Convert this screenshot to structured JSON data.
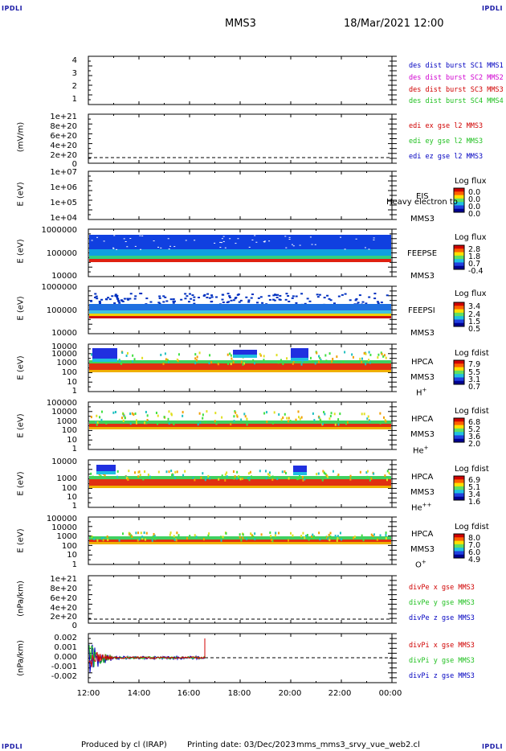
{
  "corner_label": "IPDLI",
  "header": {
    "spacecraft": "MMS3",
    "datetime": "18/Mar/2021 12:00"
  },
  "x_ticks": [
    "12:00",
    "14:00",
    "16:00",
    "18:00",
    "20:00",
    "22:00",
    "00:00"
  ],
  "footer": {
    "produced_by": "Produced by cl (IRAP)",
    "printing_date": "Printing date: 03/Dec/2023",
    "file": "mms_mms3_srvy_vue_web2.cl"
  },
  "colors": {
    "blue": "#0000c0",
    "magenta": "#d000d0",
    "red": "#d00000",
    "green": "#20c020"
  },
  "panels": [
    {
      "id": "des",
      "ylabel": "",
      "yticks": [
        "4",
        "3",
        "2",
        "1"
      ],
      "legend": [
        {
          "text": "des dist burst SC1 MMS1",
          "color": "#0000c0"
        },
        {
          "text": "des dist burst SC2 MMS2",
          "color": "#d000d0"
        },
        {
          "text": "des dist burst SC3 MMS3",
          "color": "#d00000"
        },
        {
          "text": "des dist burst SC4 MMS4",
          "color": "#20c020"
        }
      ]
    },
    {
      "id": "edi",
      "ylabel": "(mV/m)",
      "yticks": [
        "1e+21",
        "8e+20",
        "6e+20",
        "4e+20",
        "2e+20",
        "0"
      ],
      "legend": [
        {
          "text": "edi ex gse l2 MMS3",
          "color": "#d00000"
        },
        {
          "text": "edi ey gse l2 MMS3",
          "color": "#20c020"
        },
        {
          "text": "edi ez gse l2 MMS3",
          "color": "#0000c0"
        }
      ]
    },
    {
      "id": "eis",
      "ylabel": "E (eV)",
      "yticks": [
        "1e+07",
        "1e+06",
        "1e+05",
        "1e+04"
      ],
      "instrument": [
        "EIS",
        "MMS3"
      ],
      "overlay": "Heavy electron to",
      "cb_title": "Log flux",
      "cb_ticks": [
        "0.0",
        "0.0",
        "0.0",
        "0.0"
      ]
    },
    {
      "id": "feepse",
      "ylabel": "E (eV)",
      "yticks": [
        "1000000",
        "100000",
        "10000"
      ],
      "instrument": [
        "FEEPSE",
        "MMS3"
      ],
      "cb_title": "Log flux",
      "cb_ticks": [
        "2.8",
        "1.8",
        "0.7",
        "-0.4"
      ]
    },
    {
      "id": "feepsi",
      "ylabel": "E (eV)",
      "yticks": [
        "1000000",
        "100000",
        "10000"
      ],
      "instrument": [
        "FEEPSI",
        "MMS3"
      ],
      "cb_title": "Log flux",
      "cb_ticks": [
        "3.4",
        "2.4",
        "1.5",
        "0.5"
      ]
    },
    {
      "id": "hpca_h",
      "ylabel": "E (eV)",
      "yticks": [
        "10000",
        "1000",
        "100",
        "10",
        "1"
      ],
      "instrument": [
        "HPCA",
        "MMS3"
      ],
      "species": "H",
      "species_sup": "+",
      "cb_title": "Log fdist",
      "cb_ticks": [
        "7.9",
        "5.5",
        "3.1",
        "0.7"
      ]
    },
    {
      "id": "hpca_he",
      "ylabel": "E (eV)",
      "yticks": [
        "100000",
        "10000",
        "1000",
        "100",
        "10",
        "1"
      ],
      "instrument": [
        "HPCA",
        "MMS3"
      ],
      "species": "He",
      "species_sup": "+",
      "cb_title": "Log fdist",
      "cb_ticks": [
        "6.8",
        "5.2",
        "3.6",
        "2.0"
      ]
    },
    {
      "id": "hpca_hepp",
      "ylabel": "E (eV)",
      "yticks": [
        "10000",
        "1000",
        "100",
        "10",
        "1"
      ],
      "instrument": [
        "HPCA",
        "MMS3"
      ],
      "species": "He",
      "species_sup": "++",
      "cb_title": "Log fdist",
      "cb_ticks": [
        "6.9",
        "5.1",
        "3.4",
        "1.6"
      ]
    },
    {
      "id": "hpca_o",
      "ylabel": "E (eV)",
      "yticks": [
        "100000",
        "10000",
        "1000",
        "100",
        "10",
        "1"
      ],
      "instrument": [
        "HPCA",
        "MMS3"
      ],
      "species": "O",
      "species_sup": "+",
      "cb_title": "Log fdist",
      "cb_ticks": [
        "8.0",
        "7.0",
        "6.0",
        "4.9"
      ]
    },
    {
      "id": "divpe",
      "ylabel": "(nPa/km)",
      "yticks": [
        "1e+21",
        "8e+20",
        "6e+20",
        "4e+20",
        "2e+20",
        "0"
      ],
      "legend": [
        {
          "text": "divPe x gse MMS3",
          "color": "#d00000"
        },
        {
          "text": "divPe y gse MMS3",
          "color": "#20c020"
        },
        {
          "text": "divPe z gse MMS3",
          "color": "#0000c0"
        }
      ]
    },
    {
      "id": "divpi",
      "ylabel": "(nPa/km)",
      "yticks": [
        "0.002",
        "0.001",
        "0.000",
        "-0.001",
        "-0.002"
      ],
      "legend": [
        {
          "text": "divPi x gse MMS3",
          "color": "#d00000"
        },
        {
          "text": "divPi y gse MMS3",
          "color": "#20c020"
        },
        {
          "text": "divPi z gse MMS3",
          "color": "#0000c0"
        }
      ]
    }
  ],
  "chart_data": {
    "type": "heatmap",
    "x_range": [
      "12:00",
      "00:00"
    ],
    "series_note_panels": "stacked time-series spectrogram panels",
    "divPi_ylim": [
      -0.0025,
      0.0025
    ],
    "divPi_data_end": "16:35"
  }
}
